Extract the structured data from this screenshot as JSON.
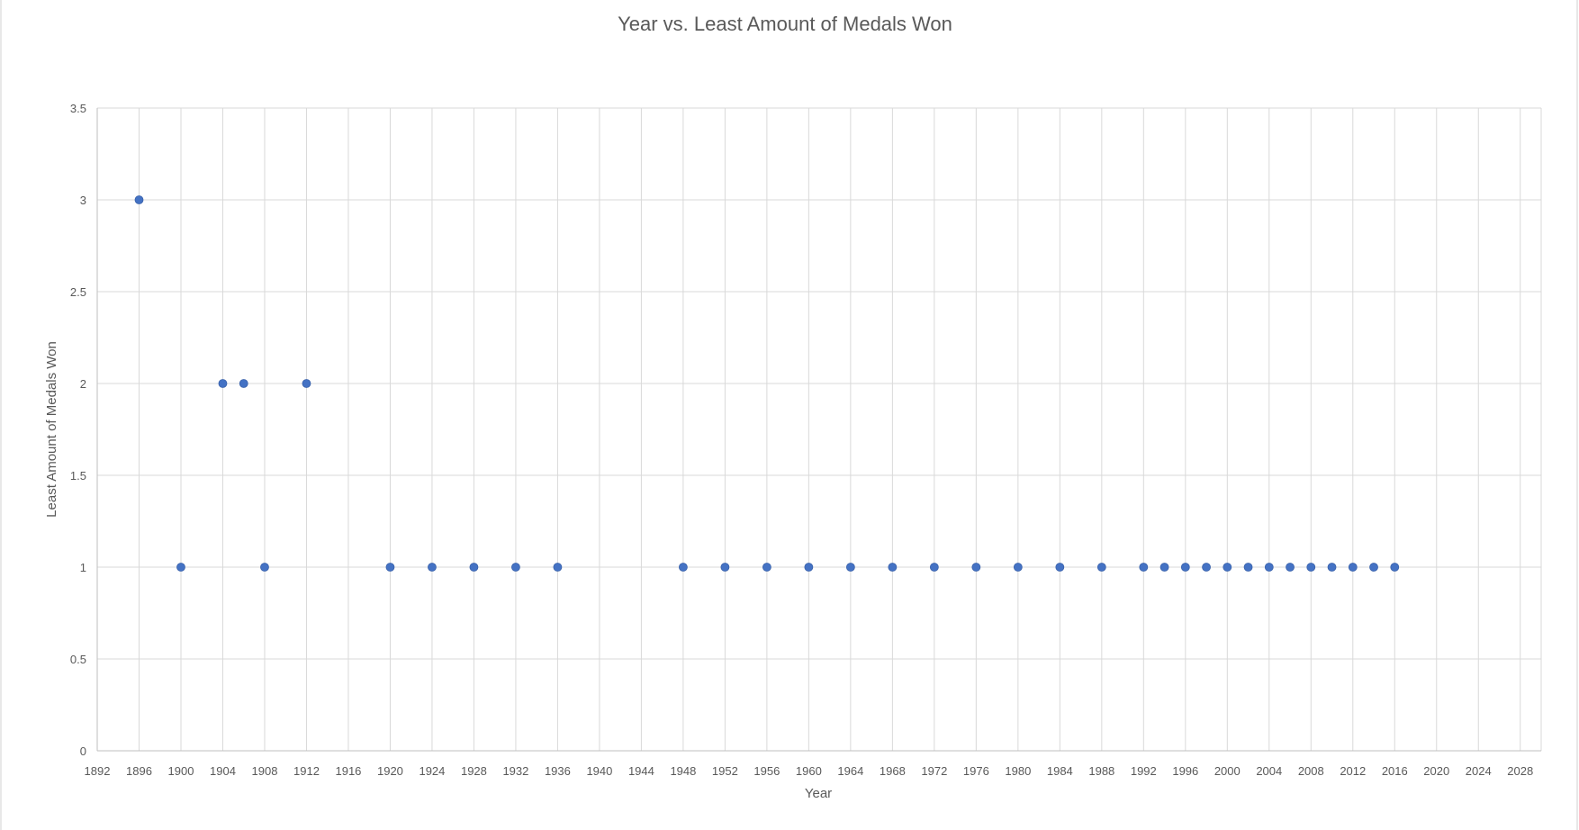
{
  "chart_data": {
    "type": "scatter",
    "title": "Year vs. Least Amount of Medals Won",
    "xlabel": "Year",
    "ylabel": "Least Amount of Medals Won",
    "xlim": [
      1892,
      2030
    ],
    "ylim": [
      0,
      3.5
    ],
    "x_ticks": [
      1892,
      1896,
      1900,
      1904,
      1908,
      1912,
      1916,
      1920,
      1924,
      1928,
      1932,
      1936,
      1940,
      1944,
      1948,
      1952,
      1956,
      1960,
      1964,
      1968,
      1972,
      1976,
      1980,
      1984,
      1988,
      1992,
      1996,
      2000,
      2004,
      2008,
      2012,
      2016,
      2020,
      2024,
      2028
    ],
    "y_ticks": [
      0,
      0.5,
      1,
      1.5,
      2,
      2.5,
      3,
      3.5
    ],
    "grid": true,
    "marker_color": "#4472c4",
    "series": [
      {
        "x": [
          1896,
          1900,
          1904,
          1906,
          1908,
          1912,
          1920,
          1924,
          1928,
          1932,
          1936,
          1948,
          1952,
          1956,
          1960,
          1964,
          1968,
          1972,
          1976,
          1980,
          1984,
          1988,
          1992,
          1994,
          1996,
          1998,
          2000,
          2002,
          2004,
          2006,
          2008,
          2010,
          2012,
          2014,
          2016
        ],
        "y": [
          3,
          1,
          2,
          2,
          1,
          2,
          1,
          1,
          1,
          1,
          1,
          1,
          1,
          1,
          1,
          1,
          1,
          1,
          1,
          1,
          1,
          1,
          1,
          1,
          1,
          1,
          1,
          1,
          1,
          1,
          1,
          1,
          1,
          1,
          1
        ]
      }
    ]
  }
}
